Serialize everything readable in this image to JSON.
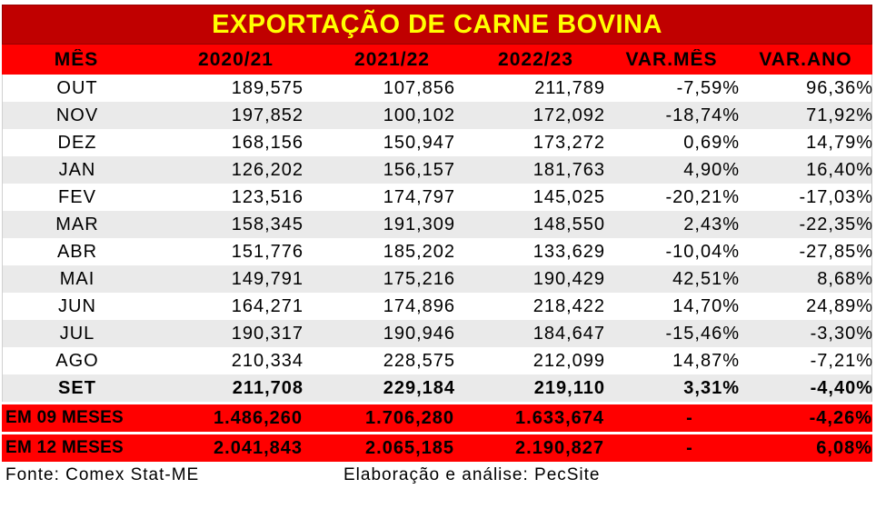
{
  "title": "EXPORTAÇÃO DE CARNE BOVINA",
  "headers": [
    "MÊS",
    "2020/21",
    "2021/22",
    "2022/23",
    "VAR.MÊS",
    "VAR.ANO"
  ],
  "rows": [
    {
      "mes": "OUT",
      "a": "189,575",
      "b": "107,856",
      "c": "211,789",
      "vm": "-7,59%",
      "va": "96,36%"
    },
    {
      "mes": "NOV",
      "a": "197,852",
      "b": "100,102",
      "c": "172,092",
      "vm": "-18,74%",
      "va": "71,92%"
    },
    {
      "mes": "DEZ",
      "a": "168,156",
      "b": "150,947",
      "c": "173,272",
      "vm": "0,69%",
      "va": "14,79%"
    },
    {
      "mes": "JAN",
      "a": "126,202",
      "b": "156,157",
      "c": "181,763",
      "vm": "4,90%",
      "va": "16,40%"
    },
    {
      "mes": "FEV",
      "a": "123,516",
      "b": "174,797",
      "c": "145,025",
      "vm": "-20,21%",
      "va": "-17,03%"
    },
    {
      "mes": "MAR",
      "a": "158,345",
      "b": "191,309",
      "c": "148,550",
      "vm": "2,43%",
      "va": "-22,35%"
    },
    {
      "mes": "ABR",
      "a": "151,776",
      "b": "185,202",
      "c": "133,629",
      "vm": "-10,04%",
      "va": "-27,85%"
    },
    {
      "mes": "MAI",
      "a": "149,791",
      "b": "175,216",
      "c": "190,429",
      "vm": "42,51%",
      "va": "8,68%"
    },
    {
      "mes": "JUN",
      "a": "164,271",
      "b": "174,896",
      "c": "218,422",
      "vm": "14,70%",
      "va": "24,89%"
    },
    {
      "mes": "JUL",
      "a": "190,317",
      "b": "190,946",
      "c": "184,647",
      "vm": "-15,46%",
      "va": "-3,30%"
    },
    {
      "mes": "AGO",
      "a": "210,334",
      "b": "228,575",
      "c": "212,099",
      "vm": "14,87%",
      "va": "-7,21%"
    },
    {
      "mes": "SET",
      "a": "211,708",
      "b": "229,184",
      "c": "219,110",
      "vm": "3,31%",
      "va": "-4,40%"
    }
  ],
  "totals": [
    {
      "label": "EM 09 MESES",
      "a": "1.486,260",
      "b": "1.706,280",
      "c": "1.633,674",
      "vm": "-",
      "va": "-4,26%"
    },
    {
      "label": "EM 12 MESES",
      "a": "2.041,843",
      "b": "2.065,185",
      "c": "2.190,827",
      "vm": "-",
      "va": "6,08%"
    }
  ],
  "footer": {
    "source": "Fonte: Comex Stat-ME",
    "credit": "Elaboração e análise: PecSite"
  },
  "colors": {
    "title_bg": "#c00000",
    "title_text": "#ffff00",
    "header_bg": "#ff0000",
    "stripe": "#eaeaea"
  }
}
